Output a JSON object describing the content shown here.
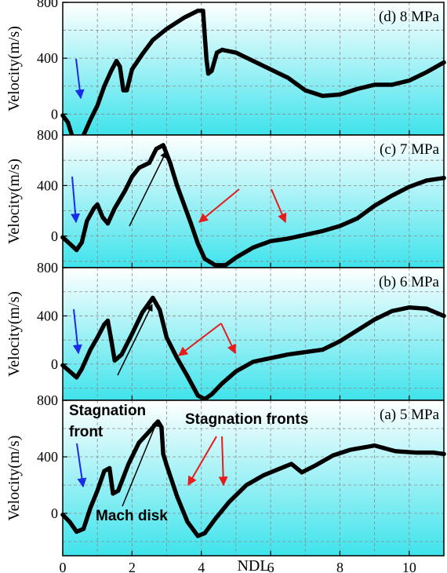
{
  "chart_data": [
    {
      "type": "scatter",
      "panel": "d",
      "title": "(d) 8 MPa",
      "ylabel": "Velocity(m/s)",
      "xlabel": "",
      "xlim": [
        0,
        11
      ],
      "ylim": [
        -150,
        800
      ],
      "yticks": [
        0,
        400,
        800
      ],
      "grid": true,
      "points": [
        [
          0,
          -10
        ],
        [
          0.15,
          -60
        ],
        [
          0.3,
          -180
        ],
        [
          0.4,
          -230
        ],
        [
          0.55,
          -180
        ],
        [
          0.8,
          -40
        ],
        [
          1.0,
          60
        ],
        [
          1.2,
          200
        ],
        [
          1.4,
          310
        ],
        [
          1.55,
          380
        ],
        [
          1.65,
          340
        ],
        [
          1.75,
          170
        ],
        [
          1.85,
          170
        ],
        [
          2.0,
          320
        ],
        [
          2.3,
          430
        ],
        [
          2.6,
          530
        ],
        [
          3.0,
          610
        ],
        [
          3.5,
          690
        ],
        [
          3.9,
          740
        ],
        [
          4.05,
          740
        ],
        [
          4.1,
          560
        ],
        [
          4.15,
          390
        ],
        [
          4.2,
          290
        ],
        [
          4.3,
          310
        ],
        [
          4.45,
          440
        ],
        [
          4.6,
          460
        ],
        [
          5.0,
          440
        ],
        [
          5.5,
          380
        ],
        [
          6.0,
          320
        ],
        [
          6.5,
          260
        ],
        [
          7.0,
          170
        ],
        [
          7.5,
          130
        ],
        [
          8.0,
          140
        ],
        [
          8.5,
          180
        ],
        [
          9.0,
          210
        ],
        [
          9.5,
          210
        ],
        [
          10.0,
          240
        ],
        [
          10.5,
          300
        ],
        [
          11.0,
          370
        ]
      ]
    },
    {
      "type": "scatter",
      "panel": "c",
      "title": "(c) 7 MPa",
      "ylabel": "Velocity(m/s)",
      "xlabel": "",
      "xlim": [
        0,
        11
      ],
      "ylim": [
        -250,
        800
      ],
      "yticks": [
        0,
        400,
        800
      ],
      "grid": true,
      "points": [
        [
          0,
          -10
        ],
        [
          0.2,
          -60
        ],
        [
          0.4,
          -110
        ],
        [
          0.55,
          -50
        ],
        [
          0.7,
          120
        ],
        [
          0.9,
          220
        ],
        [
          1.0,
          250
        ],
        [
          1.15,
          150
        ],
        [
          1.3,
          100
        ],
        [
          1.5,
          220
        ],
        [
          1.8,
          360
        ],
        [
          2.0,
          470
        ],
        [
          2.2,
          540
        ],
        [
          2.5,
          580
        ],
        [
          2.7,
          690
        ],
        [
          2.9,
          720
        ],
        [
          3.1,
          580
        ],
        [
          3.3,
          400
        ],
        [
          3.5,
          250
        ],
        [
          3.7,
          100
        ],
        [
          3.9,
          -60
        ],
        [
          4.1,
          -180
        ],
        [
          4.4,
          -230
        ],
        [
          4.7,
          -230
        ],
        [
          5.0,
          -170
        ],
        [
          5.5,
          -90
        ],
        [
          6.0,
          -40
        ],
        [
          6.5,
          -20
        ],
        [
          7.0,
          10
        ],
        [
          7.5,
          40
        ],
        [
          8.0,
          80
        ],
        [
          8.5,
          140
        ],
        [
          9.0,
          240
        ],
        [
          9.5,
          320
        ],
        [
          10.0,
          390
        ],
        [
          10.5,
          440
        ],
        [
          11.0,
          460
        ]
      ]
    },
    {
      "type": "scatter",
      "panel": "b",
      "title": "(b) 6 MPa",
      "ylabel": "Velocity(m/s)",
      "xlabel": "",
      "xlim": [
        0,
        11
      ],
      "ylim": [
        -300,
        800
      ],
      "yticks": [
        0,
        400,
        800
      ],
      "grid": true,
      "points": [
        [
          0,
          -10
        ],
        [
          0.2,
          -60
        ],
        [
          0.4,
          -110
        ],
        [
          0.55,
          -40
        ],
        [
          0.8,
          120
        ],
        [
          1.0,
          220
        ],
        [
          1.2,
          330
        ],
        [
          1.3,
          360
        ],
        [
          1.4,
          200
        ],
        [
          1.5,
          30
        ],
        [
          1.7,
          80
        ],
        [
          2.0,
          250
        ],
        [
          2.3,
          430
        ],
        [
          2.6,
          550
        ],
        [
          2.8,
          450
        ],
        [
          3.0,
          220
        ],
        [
          3.3,
          50
        ],
        [
          3.6,
          -100
        ],
        [
          3.9,
          -260
        ],
        [
          4.1,
          -290
        ],
        [
          4.3,
          -250
        ],
        [
          4.6,
          -160
        ],
        [
          5.0,
          -60
        ],
        [
          5.5,
          20
        ],
        [
          6.0,
          50
        ],
        [
          6.5,
          80
        ],
        [
          7.0,
          100
        ],
        [
          7.5,
          120
        ],
        [
          8.0,
          190
        ],
        [
          8.5,
          280
        ],
        [
          9.0,
          370
        ],
        [
          9.5,
          440
        ],
        [
          10.0,
          470
        ],
        [
          10.5,
          460
        ],
        [
          11.0,
          400
        ]
      ]
    },
    {
      "type": "scatter",
      "panel": "a",
      "title": "(a) 5 MPa",
      "ylabel": "Velocity(m/s)",
      "xlabel": "NDL",
      "xlim": [
        0,
        11
      ],
      "xticks": [
        0,
        2,
        4,
        6,
        8,
        10
      ],
      "ylim": [
        -300,
        800
      ],
      "yticks": [
        0,
        400,
        800
      ],
      "grid": true,
      "points": [
        [
          0,
          -10
        ],
        [
          0.2,
          -60
        ],
        [
          0.4,
          -130
        ],
        [
          0.6,
          -110
        ],
        [
          0.8,
          40
        ],
        [
          1.0,
          160
        ],
        [
          1.2,
          300
        ],
        [
          1.35,
          320
        ],
        [
          1.45,
          140
        ],
        [
          1.6,
          160
        ],
        [
          1.9,
          350
        ],
        [
          2.2,
          500
        ],
        [
          2.5,
          580
        ],
        [
          2.75,
          650
        ],
        [
          2.85,
          610
        ],
        [
          2.9,
          420
        ],
        [
          3.0,
          340
        ],
        [
          3.3,
          120
        ],
        [
          3.6,
          -60
        ],
        [
          3.9,
          -160
        ],
        [
          4.1,
          -140
        ],
        [
          4.4,
          -40
        ],
        [
          4.8,
          80
        ],
        [
          5.3,
          200
        ],
        [
          5.8,
          270
        ],
        [
          6.3,
          320
        ],
        [
          6.6,
          350
        ],
        [
          6.9,
          290
        ],
        [
          7.3,
          340
        ],
        [
          7.8,
          410
        ],
        [
          8.3,
          450
        ],
        [
          9.0,
          480
        ],
        [
          9.6,
          440
        ],
        [
          10.2,
          430
        ],
        [
          10.7,
          430
        ],
        [
          11.0,
          420
        ]
      ]
    }
  ],
  "annotations": {
    "stagnation_front": "Stagnation\nfront",
    "stagnation_fronts": "Stagnation fronts",
    "mach_disk": "Mach disk"
  },
  "colors": {
    "bg_top": "#ffffff",
    "bg_bottom": "#3fe3ec",
    "blue_arrow": "#1a2be8",
    "red_arrow": "#e81a1a",
    "black_arrow": "#000000",
    "data": "#000000"
  }
}
